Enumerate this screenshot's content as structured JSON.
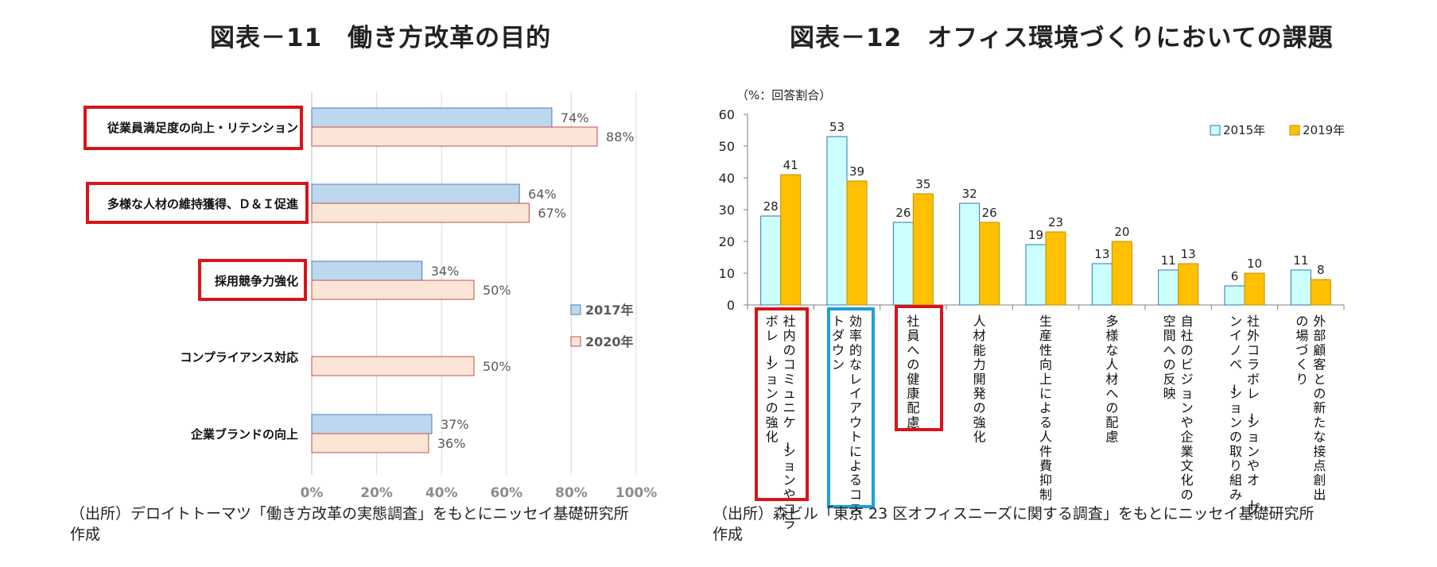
{
  "titles": {
    "left": "図表－11　働き方改革の目的",
    "right": "図表－12　オフィス環境づくりにおいての課題"
  },
  "sources": {
    "left_line1": "（出所）デロイトトーマツ「働き方改革の実態調査」をもとにニッセイ基礎研究所",
    "left_line2": "作成",
    "right_line1": "（出所）森ビル「東京 23 区オフィスニーズに関する調査」をもとにニッセイ基礎研究所",
    "right_line2": "作成"
  },
  "colors": {
    "left_2017": "#bdd7ee",
    "left_2017_border": "#4a7ebb",
    "left_2020": "#fbe5d6",
    "left_2020_border": "#c0504d",
    "right_2015": "#ccffff",
    "right_2015_border": "#2e75b6",
    "right_2019": "#ffc000",
    "right_2019_border": "#bf8f00",
    "highlight_red": "#d9141a",
    "highlight_blue": "#1ba1d8"
  },
  "chart_data": [
    {
      "type": "bar",
      "orientation": "horizontal",
      "title": "図表－11　働き方改革の目的",
      "categories": [
        "従業員満足度の向上・リテンション",
        "多様な人材の維持獲得、Ｄ＆Ｉ促進",
        "採用競争力強化",
        "コンプライアンス対応",
        "企業ブランドの向上"
      ],
      "series": [
        {
          "name": "2017年",
          "values": [
            74,
            64,
            34,
            null,
            37
          ]
        },
        {
          "name": "2020年",
          "values": [
            88,
            67,
            50,
            50,
            36
          ]
        }
      ],
      "value_suffix": "%",
      "xlim": [
        0,
        100
      ],
      "xticks": [
        "0%",
        "20%",
        "40%",
        "60%",
        "80%",
        "100%"
      ],
      "highlighted_categories": [
        0,
        1,
        2
      ],
      "legend": "right"
    },
    {
      "type": "bar",
      "orientation": "vertical",
      "title": "図表－12　オフィス環境づくりにおいての課題",
      "ylabel": "（%：回答割合）",
      "ylim": [
        0,
        60
      ],
      "yticks": [
        "0",
        "10",
        "20",
        "30",
        "40",
        "50",
        "60"
      ],
      "categories": [
        [
          "社内のコミュニケーションやコラ",
          "ボレーションの強化"
        ],
        [
          "効率的なレイアウトによるコス",
          "トダウン"
        ],
        [
          "社員への健康配慮"
        ],
        [
          "人材能力開発の強化"
        ],
        [
          "生産性向上による人件費抑制"
        ],
        [
          "多様な人材への配慮"
        ],
        [
          "自社のビジョンや企業文化の",
          "空間への反映"
        ],
        [
          "社外コラボレーションやオープ",
          "ンイノベーションの取り組み"
        ],
        [
          "外部顧客との新たな接点創出",
          "の場づくり"
        ]
      ],
      "series": [
        {
          "name": "2015年",
          "values": [
            28,
            53,
            26,
            32,
            19,
            13,
            11,
            6,
            11
          ]
        },
        {
          "name": "2019年",
          "values": [
            41,
            39,
            35,
            26,
            23,
            20,
            13,
            10,
            8
          ]
        }
      ],
      "highlighted_categories": {
        "red": [
          0,
          2
        ],
        "blue": [
          1
        ]
      },
      "legend": "top-right"
    }
  ]
}
